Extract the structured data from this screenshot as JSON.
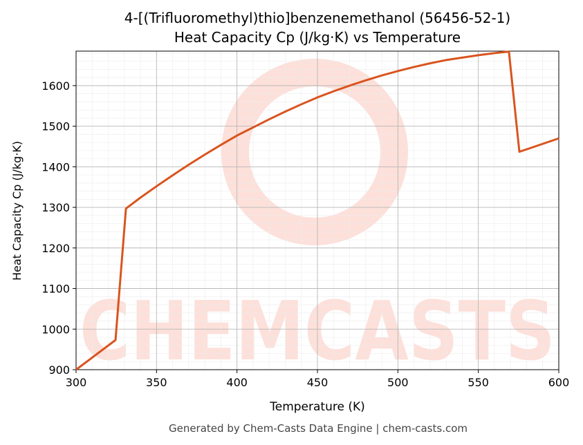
{
  "chart_data": {
    "type": "line",
    "title": "4-[(Trifluoromethyl)thio]benzenemethanol (56456-52-1)",
    "subtitle": "Heat Capacity Cp (J/kg·K) vs Temperature",
    "x_label": "Temperature (K)",
    "y_label": "Heat Capacity Cp (J/kg·K)",
    "footer": "Generated by Chem-Casts Data Engine | chem-casts.com",
    "watermark": "CHEMCASTS",
    "x": [
      300,
      324.5,
      331,
      340,
      350,
      360,
      370,
      380,
      390,
      400,
      410,
      420,
      430,
      440,
      450,
      460,
      470,
      480,
      490,
      500,
      510,
      520,
      530,
      540,
      550,
      560,
      569,
      575.5,
      600
    ],
    "series": [
      {
        "name": "Cp",
        "color": "#d9541e",
        "values": [
          900,
          973,
          1297,
          1324,
          1352,
          1379,
          1405,
          1430,
          1454,
          1477,
          1497,
          1517,
          1536,
          1554,
          1571,
          1586,
          1600,
          1613,
          1625,
          1636,
          1646,
          1655,
          1663,
          1669,
          1675,
          1680,
          1684,
          1437,
          1470
        ]
      }
    ],
    "xlim": [
      300,
      600
    ],
    "ylim": [
      900,
      1685
    ],
    "xticks": [
      300,
      350,
      400,
      450,
      500,
      550,
      600
    ],
    "yticks": [
      900,
      1000,
      1100,
      1200,
      1300,
      1400,
      1500,
      1600
    ],
    "grid": true,
    "minor_grid": true
  }
}
